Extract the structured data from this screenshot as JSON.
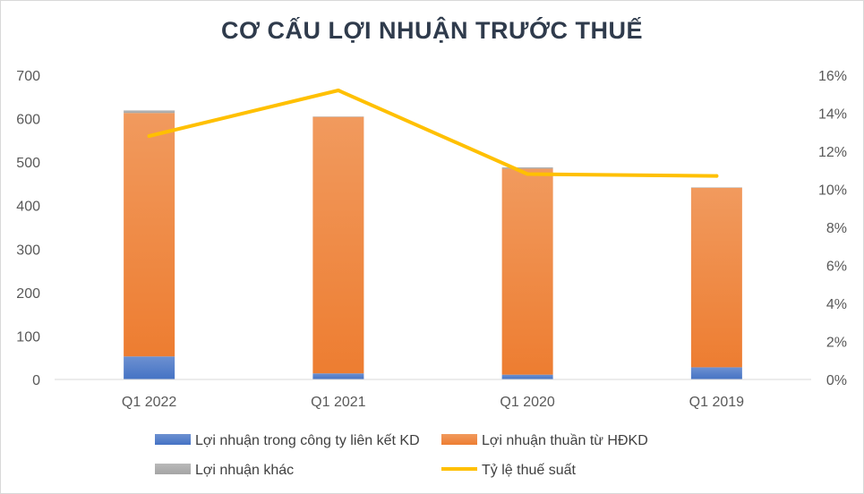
{
  "chart_data": {
    "type": "bar",
    "title": "CƠ CẤU LỢI NHUẬN TRƯỚC THUẾ",
    "categories": [
      "Q1 2022",
      "Q1 2021",
      "Q1 2020",
      "Q1 2019"
    ],
    "stacked": true,
    "series": [
      {
        "name": "Lợi nhuận trong công ty liên kết KD",
        "type": "bar",
        "axis": "left",
        "color": "#4472c4",
        "values": [
          53,
          14,
          11,
          28
        ]
      },
      {
        "name": "Lợi nhuận thuần từ HĐKD",
        "type": "bar",
        "axis": "left",
        "color": "#ed7d31",
        "values": [
          560,
          590,
          474,
          413
        ]
      },
      {
        "name": "Lợi nhuận khác",
        "type": "bar",
        "axis": "left",
        "color": "#a5a5a5",
        "values": [
          6,
          1,
          3,
          1
        ]
      },
      {
        "name": "Tỷ lệ thuế suất",
        "type": "line",
        "axis": "right",
        "color": "#ffc000",
        "values": [
          0.128,
          0.152,
          0.108,
          0.107
        ]
      }
    ],
    "y_left": {
      "min": 0,
      "max": 700,
      "ticks": [
        0,
        100,
        200,
        300,
        400,
        500,
        600,
        700
      ],
      "tick_labels": [
        "0",
        "100",
        "200",
        "300",
        "400",
        "500",
        "600",
        "700"
      ]
    },
    "y_right": {
      "min": 0,
      "max": 0.16,
      "ticks": [
        0,
        0.02,
        0.04,
        0.06,
        0.08,
        0.1,
        0.12,
        0.14,
        0.16
      ],
      "tick_labels": [
        "0%",
        "2%",
        "4%",
        "6%",
        "8%",
        "10%",
        "12%",
        "14%",
        "16%"
      ]
    },
    "grid": false,
    "legend_position": "bottom"
  }
}
